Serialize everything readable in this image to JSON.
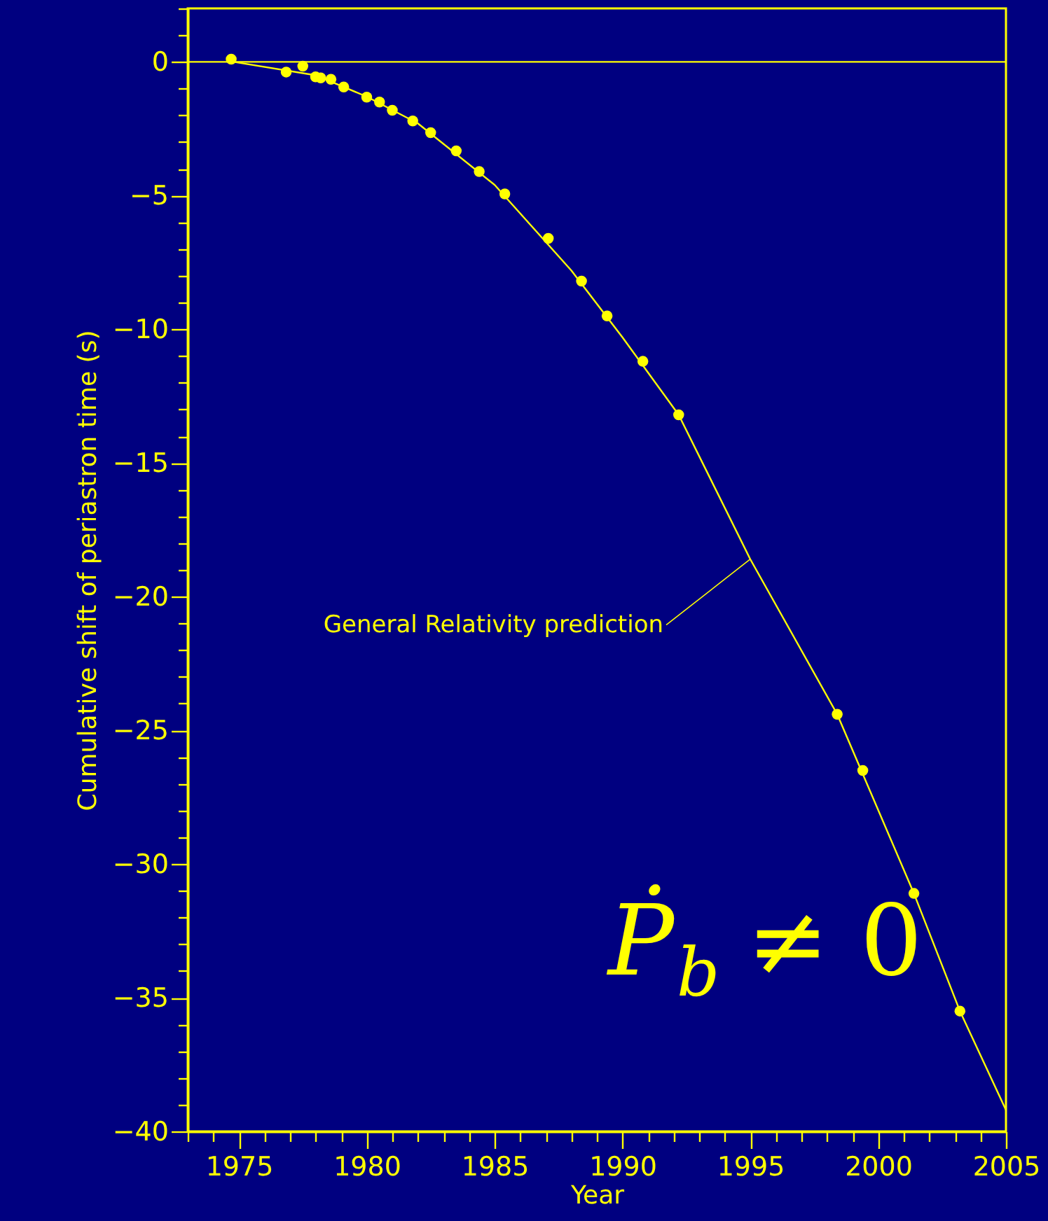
{
  "chart_data": {
    "type": "scatter",
    "xlabel": "Year",
    "ylabel": "Cumulative shift of periastron time (s)",
    "xlim": [
      1973,
      2005
    ],
    "ylim": [
      -40,
      2
    ],
    "xticks": [
      {
        "value": 1973,
        "label": null
      },
      {
        "value": 1974,
        "label": null
      },
      1975,
      {
        "value": 1976,
        "label": null
      },
      {
        "value": 1977,
        "label": null
      },
      {
        "value": 1978,
        "label": null
      },
      {
        "value": 1979,
        "label": null
      },
      1980,
      {
        "value": 1981,
        "label": null
      },
      {
        "value": 1982,
        "label": null
      },
      {
        "value": 1983,
        "label": null
      },
      {
        "value": 1984,
        "label": null
      },
      1985,
      {
        "value": 1986,
        "label": null
      },
      {
        "value": 1987,
        "label": null
      },
      {
        "value": 1988,
        "label": null
      },
      {
        "value": 1989,
        "label": null
      },
      1990,
      {
        "value": 1991,
        "label": null
      },
      {
        "value": 1992,
        "label": null
      },
      {
        "value": 1993,
        "label": null
      },
      {
        "value": 1994,
        "label": null
      },
      1995,
      {
        "value": 1996,
        "label": null
      },
      {
        "value": 1997,
        "label": null
      },
      {
        "value": 1998,
        "label": null
      },
      {
        "value": 1999,
        "label": null
      },
      2000,
      {
        "value": 2001,
        "label": null
      },
      {
        "value": 2002,
        "label": null
      },
      {
        "value": 2003,
        "label": null
      },
      {
        "value": 2004,
        "label": null
      },
      2005
    ],
    "yticks": [
      -40,
      {
        "value": -39,
        "label": null
      },
      {
        "value": -38,
        "label": null
      },
      {
        "value": -37,
        "label": null
      },
      {
        "value": -36,
        "label": null
      },
      -35,
      {
        "value": -34,
        "label": null
      },
      {
        "value": -33,
        "label": null
      },
      {
        "value": -32,
        "label": null
      },
      {
        "value": -31,
        "label": null
      },
      -30,
      {
        "value": -29,
        "label": null
      },
      {
        "value": -28,
        "label": null
      },
      {
        "value": -27,
        "label": null
      },
      {
        "value": -26,
        "label": null
      },
      -25,
      {
        "value": -24,
        "label": null
      },
      {
        "value": -23,
        "label": null
      },
      {
        "value": -22,
        "label": null
      },
      {
        "value": -21,
        "label": null
      },
      -20,
      {
        "value": -19,
        "label": null
      },
      {
        "value": -18,
        "label": null
      },
      {
        "value": -17,
        "label": null
      },
      {
        "value": -16,
        "label": null
      },
      -15,
      {
        "value": -14,
        "label": null
      },
      {
        "value": -13,
        "label": null
      },
      {
        "value": -12,
        "label": null
      },
      {
        "value": -11,
        "label": null
      },
      -10,
      {
        "value": -9,
        "label": null
      },
      {
        "value": -8,
        "label": null
      },
      {
        "value": -7,
        "label": null
      },
      {
        "value": -6,
        "label": null
      },
      -5,
      {
        "value": -4,
        "label": null
      },
      {
        "value": -3,
        "label": null
      },
      {
        "value": -2,
        "label": null
      },
      {
        "value": -1,
        "label": null
      },
      0,
      {
        "value": 1,
        "label": null
      },
      {
        "value": 2,
        "label": null
      }
    ],
    "grid": false,
    "tick_labels": "xy",
    "ref_lines": [
      {
        "axis": "y",
        "value": 0,
        "color": "#ffff00"
      }
    ],
    "annotations": [
      {
        "text": "General Relativity prediction",
        "x": 1995,
        "y": -18.6
      },
      "Ṗ$_{b}$ ≠ 0"
    ],
    "series": [
      {
        "marker": "circle",
        "color": "#ffff00",
        "x": [
          1974.7,
          1976.85,
          1977.5,
          1978.0,
          1978.2,
          1978.6,
          1979.1,
          1980.0,
          1980.5,
          1981.0,
          1981.8,
          1982.5,
          1983.5,
          1984.4,
          1985.4,
          1987.1,
          1988.4,
          1989.4,
          1990.8,
          1992.2,
          1998.4,
          1999.4,
          2001.4,
          2003.2
        ],
        "values": [
          0.1,
          -0.38,
          -0.16,
          -0.56,
          -0.6,
          -0.65,
          -0.94,
          -1.32,
          -1.5,
          -1.81,
          -2.21,
          -2.65,
          -3.33,
          -4.1,
          -4.94,
          -6.6,
          -8.2,
          -9.5,
          -11.2,
          -13.2,
          -24.4,
          -26.5,
          -31.1,
          -35.5
        ]
      },
      {
        "type": "line",
        "marker": "none",
        "line_style": "solid",
        "color": "#ffff00",
        "x": [
          1974.8,
          1978,
          1980,
          1982,
          1985,
          1988,
          1990,
          1992.2,
          1995,
          1998.4,
          2001.4,
          2003.2,
          2005
        ],
        "values": [
          0,
          -0.5,
          -1.3,
          -2.3,
          -4.6,
          -7.8,
          -10.3,
          -13.2,
          -18.6,
          -24.4,
          -31.1,
          -35.5,
          -39.2
        ]
      }
    ]
  }
}
